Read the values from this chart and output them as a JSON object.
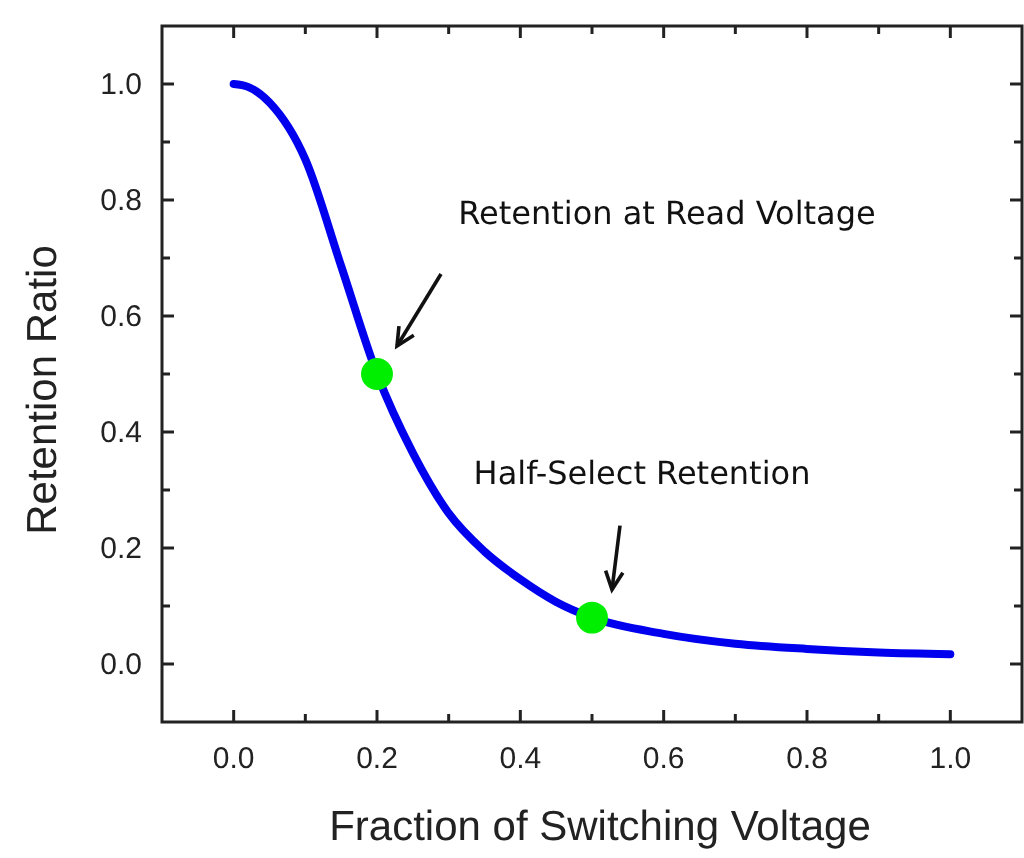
{
  "chart_data": {
    "type": "line",
    "xlabel": "Fraction of Switching Voltage",
    "ylabel": "Retention Ratio",
    "xlim": [
      -0.1,
      1.1
    ],
    "ylim": [
      -0.1,
      1.1
    ],
    "xticks": [
      {
        "value": 0,
        "label": "0.0"
      },
      {
        "value": 0.1,
        "label": null
      },
      0.2,
      {
        "value": 0.3,
        "label": null
      },
      0.4,
      {
        "value": 0.5,
        "label": null
      },
      0.6,
      {
        "value": 0.7,
        "label": null
      },
      0.8,
      {
        "value": 0.9,
        "label": null
      },
      {
        "value": 1,
        "label": "1.0"
      }
    ],
    "yticks": [
      {
        "value": 0,
        "label": "0.0"
      },
      {
        "value": 0.1,
        "label": null
      },
      0.2,
      {
        "value": 0.3,
        "label": null
      },
      0.4,
      {
        "value": 0.5,
        "label": null
      },
      0.6,
      {
        "value": 0.7,
        "label": null
      },
      0.8,
      {
        "value": 0.9,
        "label": null
      },
      {
        "value": 1,
        "label": "1.0"
      }
    ],
    "grid": false,
    "marker": "none",
    "line_style": "solid",
    "series": [
      {
        "color": "#0000ee",
        "x": [
          0,
          0.02,
          0.05,
          0.1,
          0.15,
          0.2,
          0.25,
          0.3,
          0.35,
          0.4,
          0.45,
          0.5,
          0.6,
          0.7,
          0.8,
          0.9,
          1
        ],
        "values": [
          1,
          0.995,
          0.968,
          0.87,
          0.686,
          0.5,
          0.364,
          0.26,
          0.194,
          0.146,
          0.107,
          0.08,
          0.052,
          0.035,
          0.026,
          0.02,
          0.017
        ]
      },
      {
        "type": "scatter",
        "color": "#00ee00",
        "marker": "circle",
        "x": [
          0.2,
          0.5
        ],
        "values": [
          0.5,
          0.08
        ]
      }
    ],
    "annotations": [
      "Retention at Read Voltage",
      "Half-Select Retention"
    ]
  }
}
